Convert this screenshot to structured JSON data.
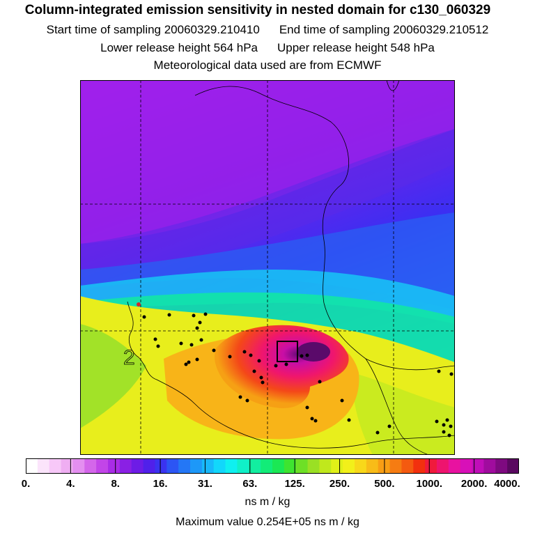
{
  "title": "Column-integrated emission sensitivity in nested domain for c130_060329",
  "start_label": "Start time of sampling 20060329.210410",
  "end_label": "End time of sampling 20060329.210512",
  "lower_label": "Lower release height  564 hPa",
  "upper_label": "Upper release height  548 hPa",
  "met_label": "Meteorological data used are from ECMWF",
  "map_contour_label": "2",
  "colorbar": {
    "colors": [
      "#ffffff",
      "#fbe4fb",
      "#f7c8f8",
      "#efaef2",
      "#e48ff0",
      "#d466ea",
      "#c245e8",
      "#a92ce6",
      "#8a20e4",
      "#6d1ce6",
      "#5020ea",
      "#3a33f0",
      "#2c55f4",
      "#2477f6",
      "#1d98f8",
      "#18b8fa",
      "#12d7fb",
      "#0ff0f0",
      "#10f0c8",
      "#12eea0",
      "#12ec78",
      "#1be854",
      "#3ee430",
      "#6de026",
      "#9ae024",
      "#c0e81c",
      "#e0f018",
      "#f2f01a",
      "#f8d81a",
      "#f8bc18",
      "#f89e14",
      "#f67c12",
      "#f45a10",
      "#f2300e",
      "#f01a3c",
      "#ee146e",
      "#e812a0",
      "#d810b8",
      "#c00eb8",
      "#a00c9e",
      "#7e0a80",
      "#5a0860"
    ],
    "ticks": [
      "0.",
      "4.",
      "8.",
      "16.",
      "31.",
      "63.",
      "125.",
      "250.",
      "500.",
      "1000.",
      "2000.",
      "4000."
    ]
  },
  "units": "ns m / kg",
  "max_label": "Maximum value  0.254E+05 ns m / kg"
}
